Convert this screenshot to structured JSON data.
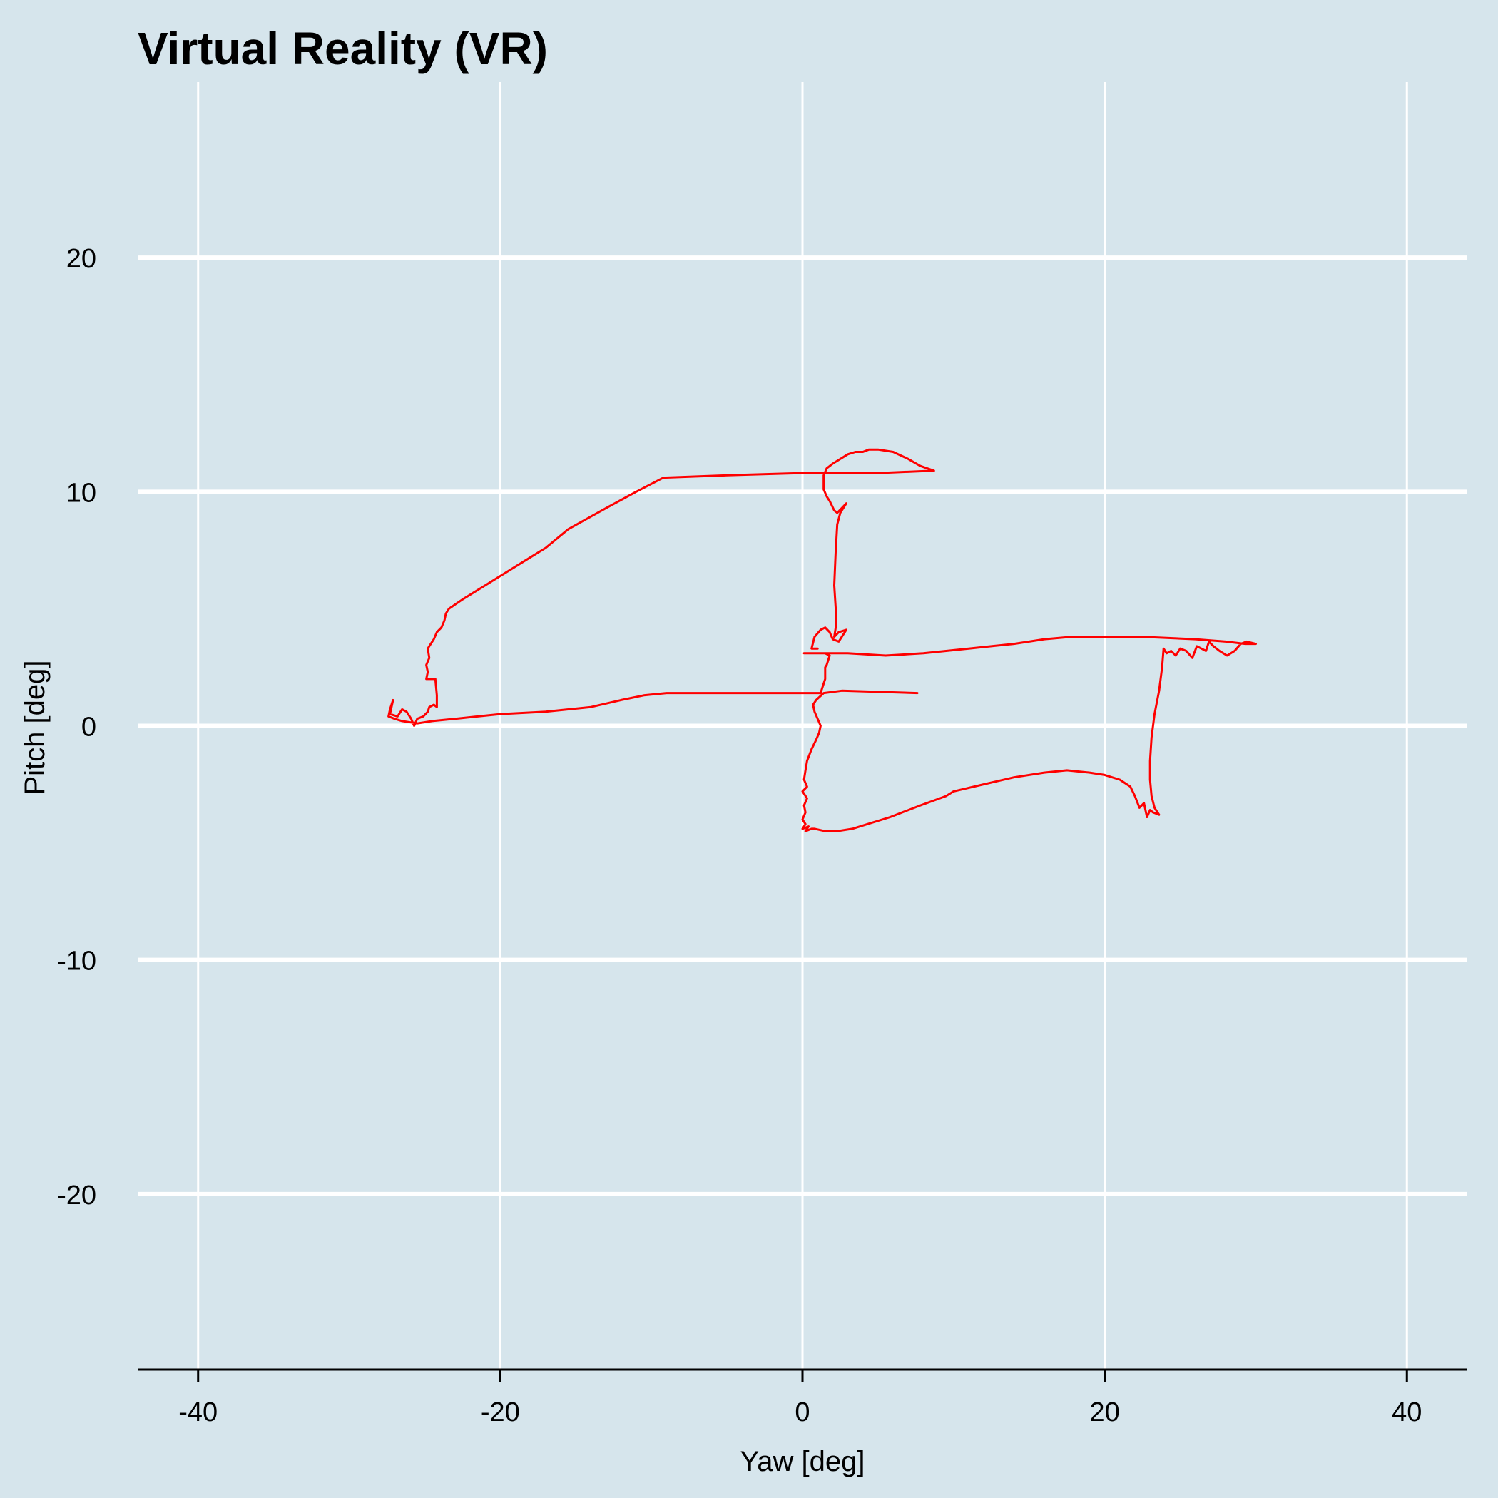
{
  "chart_data": {
    "type": "line",
    "title": "Virtual Reality (VR)",
    "xlabel": "Yaw [deg]",
    "ylabel": "Pitch [deg]",
    "xlim": [
      -44,
      44
    ],
    "ylim": [
      -27.5,
      27.5
    ],
    "xticks": [
      -40,
      -20,
      0,
      20,
      40
    ],
    "yticks": [
      -20,
      -10,
      0,
      10,
      20
    ],
    "xtick_labels": [
      "-40",
      "-20",
      "0",
      "20",
      "40"
    ],
    "ytick_labels": [
      "-20",
      "-10",
      "0",
      "10",
      "20"
    ],
    "grid": true,
    "background_color": "#d6e5ec",
    "grid_color": "#ffffff",
    "series": [
      {
        "color": "#ff0000",
        "points": [
          [
            7.6,
            1.4
          ],
          [
            2.6,
            1.5
          ],
          [
            1.4,
            1.4
          ],
          [
            0.9,
            1.1
          ],
          [
            0.7,
            0.9
          ],
          [
            0.8,
            0.6
          ],
          [
            1.0,
            0.3
          ],
          [
            1.2,
            0.0
          ],
          [
            1.1,
            -0.3
          ],
          [
            0.9,
            -0.6
          ],
          [
            0.6,
            -1.0
          ],
          [
            0.3,
            -1.5
          ],
          [
            0.2,
            -1.9
          ],
          [
            0.1,
            -2.3
          ],
          [
            0.3,
            -2.6
          ],
          [
            0.0,
            -2.8
          ],
          [
            0.3,
            -3.1
          ],
          [
            0.1,
            -3.4
          ],
          [
            0.2,
            -3.7
          ],
          [
            0.0,
            -4.0
          ],
          [
            0.2,
            -4.2
          ],
          [
            0.0,
            -4.4
          ],
          [
            0.4,
            -4.3
          ],
          [
            0.2,
            -4.5
          ],
          [
            0.6,
            -4.4
          ],
          [
            0.8,
            -4.4
          ],
          [
            1.5,
            -4.5
          ],
          [
            2.3,
            -4.5
          ],
          [
            3.3,
            -4.4
          ],
          [
            4.3,
            -4.2
          ],
          [
            5.8,
            -3.9
          ],
          [
            7.8,
            -3.4
          ],
          [
            9.5,
            -3.0
          ],
          [
            10.0,
            -2.8
          ],
          [
            12.0,
            -2.5
          ],
          [
            14.0,
            -2.2
          ],
          [
            16.0,
            -2.0
          ],
          [
            17.5,
            -1.9
          ],
          [
            19.0,
            -2.0
          ],
          [
            20.0,
            -2.1
          ],
          [
            21.0,
            -2.3
          ],
          [
            21.7,
            -2.6
          ],
          [
            22.0,
            -3.0
          ],
          [
            22.3,
            -3.5
          ],
          [
            22.6,
            -3.3
          ],
          [
            22.8,
            -3.9
          ],
          [
            23.0,
            -3.6
          ],
          [
            23.2,
            -3.7
          ],
          [
            23.6,
            -3.8
          ],
          [
            23.3,
            -3.5
          ],
          [
            23.1,
            -3.0
          ],
          [
            23.0,
            -2.3
          ],
          [
            23.0,
            -1.5
          ],
          [
            23.1,
            -0.5
          ],
          [
            23.3,
            0.5
          ],
          [
            23.6,
            1.5
          ],
          [
            23.8,
            2.5
          ],
          [
            23.9,
            3.3
          ],
          [
            24.1,
            3.1
          ],
          [
            24.4,
            3.2
          ],
          [
            24.7,
            3.0
          ],
          [
            25.0,
            3.3
          ],
          [
            25.4,
            3.2
          ],
          [
            25.8,
            2.9
          ],
          [
            26.1,
            3.4
          ],
          [
            26.4,
            3.3
          ],
          [
            26.7,
            3.2
          ],
          [
            26.9,
            3.6
          ],
          [
            27.2,
            3.4
          ],
          [
            27.6,
            3.2
          ],
          [
            28.1,
            3.0
          ],
          [
            28.6,
            3.2
          ],
          [
            29.0,
            3.5
          ],
          [
            29.4,
            3.6
          ],
          [
            30.0,
            3.5
          ],
          [
            29.3,
            3.5
          ],
          [
            28.0,
            3.6
          ],
          [
            26.0,
            3.7
          ],
          [
            22.5,
            3.8
          ],
          [
            17.8,
            3.8
          ],
          [
            16.0,
            3.7
          ],
          [
            14.0,
            3.5
          ],
          [
            11.0,
            3.3
          ],
          [
            8.0,
            3.1
          ],
          [
            5.5,
            3.0
          ],
          [
            3.0,
            3.1
          ],
          [
            1.8,
            3.1
          ],
          [
            0.1,
            3.1
          ],
          [
            1.5,
            3.1
          ],
          [
            1.8,
            3.0
          ],
          [
            1.7,
            2.8
          ],
          [
            1.6,
            2.6
          ],
          [
            1.5,
            2.5
          ],
          [
            1.5,
            2.0
          ],
          [
            1.3,
            1.6
          ],
          [
            1.2,
            1.4
          ],
          [
            0.3,
            1.4
          ],
          [
            -2.0,
            1.4
          ],
          [
            -4.5,
            1.4
          ],
          [
            -9.0,
            1.4
          ],
          [
            -10.5,
            1.3
          ],
          [
            -12.0,
            1.1
          ],
          [
            -14.0,
            0.8
          ],
          [
            -17.0,
            0.6
          ],
          [
            -20.0,
            0.5
          ],
          [
            -21.5,
            0.4
          ],
          [
            -23.0,
            0.3
          ],
          [
            -24.5,
            0.2
          ],
          [
            -25.5,
            0.1
          ],
          [
            -26.5,
            0.2
          ],
          [
            -27.0,
            0.3
          ],
          [
            -27.4,
            0.4
          ],
          [
            -27.3,
            0.7
          ],
          [
            -27.1,
            1.1
          ],
          [
            -27.3,
            0.5
          ],
          [
            -26.8,
            0.4
          ],
          [
            -26.5,
            0.7
          ],
          [
            -26.2,
            0.6
          ],
          [
            -25.9,
            0.3
          ],
          [
            -25.7,
            0.0
          ],
          [
            -25.5,
            0.3
          ],
          [
            -25.1,
            0.4
          ],
          [
            -24.8,
            0.6
          ],
          [
            -24.7,
            0.8
          ],
          [
            -24.4,
            0.9
          ],
          [
            -24.2,
            0.8
          ],
          [
            -24.2,
            1.3
          ],
          [
            -24.3,
            2.0
          ],
          [
            -24.6,
            2.0
          ],
          [
            -24.9,
            2.0
          ],
          [
            -24.8,
            2.3
          ],
          [
            -24.9,
            2.6
          ],
          [
            -24.7,
            2.9
          ],
          [
            -24.8,
            3.3
          ],
          [
            -24.6,
            3.5
          ],
          [
            -24.4,
            3.7
          ],
          [
            -24.2,
            4.0
          ],
          [
            -23.9,
            4.2
          ],
          [
            -23.7,
            4.5
          ],
          [
            -23.6,
            4.8
          ],
          [
            -23.4,
            5.0
          ],
          [
            -22.5,
            5.4
          ],
          [
            -21.0,
            6.0
          ],
          [
            -19.0,
            6.8
          ],
          [
            -17.0,
            7.6
          ],
          [
            -15.5,
            8.4
          ],
          [
            -13.0,
            9.3
          ],
          [
            -11.0,
            10.0
          ],
          [
            -9.2,
            10.6
          ],
          [
            -5.0,
            10.7
          ],
          [
            0.0,
            10.8
          ],
          [
            5.0,
            10.8
          ],
          [
            8.7,
            10.9
          ],
          [
            7.8,
            11.1
          ],
          [
            7.0,
            11.4
          ],
          [
            6.0,
            11.7
          ],
          [
            5.0,
            11.8
          ],
          [
            4.4,
            11.8
          ],
          [
            4.0,
            11.7
          ],
          [
            3.5,
            11.7
          ],
          [
            3.0,
            11.6
          ],
          [
            2.5,
            11.4
          ],
          [
            2.0,
            11.2
          ],
          [
            1.6,
            11.0
          ],
          [
            1.4,
            10.7
          ],
          [
            1.4,
            10.1
          ],
          [
            1.6,
            9.8
          ],
          [
            1.8,
            9.6
          ],
          [
            2.1,
            9.2
          ],
          [
            2.3,
            9.1
          ],
          [
            2.6,
            9.3
          ],
          [
            2.9,
            9.5
          ],
          [
            2.5,
            9.1
          ],
          [
            2.3,
            8.6
          ],
          [
            2.2,
            7.5
          ],
          [
            2.1,
            6.0
          ],
          [
            2.2,
            5.0
          ],
          [
            2.2,
            4.2
          ],
          [
            2.1,
            3.8
          ],
          [
            2.4,
            4.0
          ],
          [
            2.9,
            4.1
          ],
          [
            2.4,
            3.6
          ],
          [
            2.0,
            3.7
          ],
          [
            1.8,
            4.0
          ],
          [
            1.5,
            4.2
          ],
          [
            1.2,
            4.1
          ],
          [
            0.8,
            3.8
          ],
          [
            0.6,
            3.3
          ],
          [
            1.0,
            3.3
          ]
        ]
      }
    ]
  }
}
